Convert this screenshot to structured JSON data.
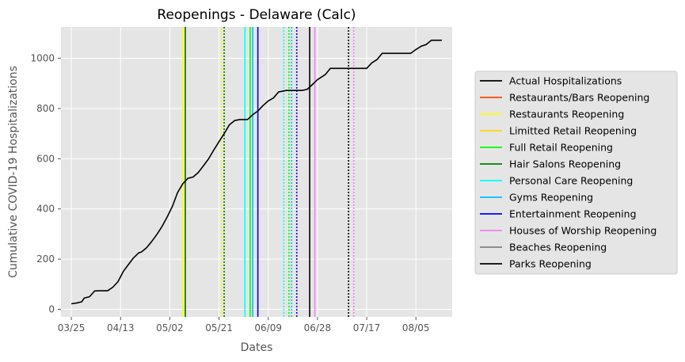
{
  "chart_data": {
    "type": "line",
    "title": "Reopenings - Delaware (Calc)",
    "xlabel": "Dates",
    "ylabel": "Cumulative COVID-19 Hospitalizations",
    "xlim": [
      "2020-03-21",
      "2020-08-19"
    ],
    "ylim": [
      -30,
      1125
    ],
    "x_ticks": [
      "2020-03-25",
      "2020-04-13",
      "2020-05-02",
      "2020-05-21",
      "2020-06-09",
      "2020-06-28",
      "2020-07-17",
      "2020-08-05"
    ],
    "x_tick_labels": [
      "03/25",
      "04/13",
      "05/02",
      "05/21",
      "06/09",
      "06/28",
      "07/17",
      "08/05"
    ],
    "y_ticks": [
      0,
      200,
      400,
      600,
      800,
      1000
    ],
    "grid": true,
    "legend_placement": "right outside",
    "series": [
      {
        "name": "Actual Hospitalizations",
        "color": "#000000",
        "points": [
          [
            "2020-03-25",
            22
          ],
          [
            "2020-03-27",
            25
          ],
          [
            "2020-03-29",
            30
          ],
          [
            "2020-03-30",
            45
          ],
          [
            "2020-04-01",
            50
          ],
          [
            "2020-04-03",
            73
          ],
          [
            "2020-04-05",
            74
          ],
          [
            "2020-04-08",
            74
          ],
          [
            "2020-04-10",
            88
          ],
          [
            "2020-04-12",
            110
          ],
          [
            "2020-04-14",
            150
          ],
          [
            "2020-04-16",
            178
          ],
          [
            "2020-04-18",
            205
          ],
          [
            "2020-04-20",
            225
          ],
          [
            "2020-04-21",
            228
          ],
          [
            "2020-04-23",
            245
          ],
          [
            "2020-04-25",
            270
          ],
          [
            "2020-04-27",
            298
          ],
          [
            "2020-04-29",
            330
          ],
          [
            "2020-05-01",
            368
          ],
          [
            "2020-05-03",
            410
          ],
          [
            "2020-05-05",
            465
          ],
          [
            "2020-05-07",
            500
          ],
          [
            "2020-05-09",
            522
          ],
          [
            "2020-05-11",
            527
          ],
          [
            "2020-05-13",
            545
          ],
          [
            "2020-05-15",
            572
          ],
          [
            "2020-05-17",
            600
          ],
          [
            "2020-05-19",
            635
          ],
          [
            "2020-05-21",
            668
          ],
          [
            "2020-05-23",
            700
          ],
          [
            "2020-05-25",
            735
          ],
          [
            "2020-05-27",
            752
          ],
          [
            "2020-05-29",
            756
          ],
          [
            "2020-06-01",
            756
          ],
          [
            "2020-06-03",
            775
          ],
          [
            "2020-06-05",
            790
          ],
          [
            "2020-06-07",
            812
          ],
          [
            "2020-06-09",
            830
          ],
          [
            "2020-06-11",
            842
          ],
          [
            "2020-06-13",
            866
          ],
          [
            "2020-06-16",
            872
          ],
          [
            "2020-06-18",
            872
          ],
          [
            "2020-06-22",
            872
          ],
          [
            "2020-06-24",
            876
          ],
          [
            "2020-06-26",
            895
          ],
          [
            "2020-06-28",
            915
          ],
          [
            "2020-07-01",
            935
          ],
          [
            "2020-07-03",
            960
          ],
          [
            "2020-07-06",
            960
          ],
          [
            "2020-07-15",
            960
          ],
          [
            "2020-07-17",
            960
          ],
          [
            "2020-07-19",
            982
          ],
          [
            "2020-07-21",
            995
          ],
          [
            "2020-07-23",
            1020
          ],
          [
            "2020-07-26",
            1020
          ],
          [
            "2020-08-01",
            1020
          ],
          [
            "2020-08-03",
            1020
          ],
          [
            "2020-08-05",
            1035
          ],
          [
            "2020-08-07",
            1048
          ],
          [
            "2020-08-09",
            1055
          ],
          [
            "2020-08-11",
            1072
          ],
          [
            "2020-08-15",
            1072
          ]
        ]
      }
    ],
    "reopenings": [
      {
        "name": "Restaurants/Bars Reopening",
        "color": "#ff4500",
        "date": "2020-05-08",
        "projected_date": "2020-05-23"
      },
      {
        "name": "Restaurants Reopening",
        "color": "#ffff00",
        "date": "2020-05-07",
        "projected_date": "2020-05-22"
      },
      {
        "name": "Limitted Retail Reopening",
        "color": "#ffd700",
        "date": "2020-05-08",
        "projected_date": "2020-05-23"
      },
      {
        "name": "Full Retail Reopening",
        "color": "#00ff00",
        "date": "2020-06-02",
        "projected_date": "2020-06-17"
      },
      {
        "name": "Hair Salons Reopening",
        "color": "#008000",
        "date": "2020-05-08",
        "projected_date": "2020-05-23"
      },
      {
        "name": "Personal Care Reopening",
        "color": "#00ffff",
        "date": "2020-05-31",
        "projected_date": "2020-06-15"
      },
      {
        "name": "Gyms Reopening",
        "color": "#00bfff",
        "date": "2020-06-03",
        "projected_date": "2020-06-18"
      },
      {
        "name": "Entertainment Reopening",
        "color": "#0000ff",
        "date": "2020-06-05",
        "projected_date": "2020-06-20"
      },
      {
        "name": "Houses of Worship Reopening",
        "color": "#ee82ee",
        "date": "2020-06-27",
        "projected_date": "2020-07-12"
      },
      {
        "name": "Beaches Reopening",
        "color": "#808080",
        "date": null,
        "projected_date": null
      },
      {
        "name": "Parks Reopening",
        "color": "#000000",
        "date": "2020-06-25",
        "projected_date": "2020-07-10"
      }
    ]
  }
}
